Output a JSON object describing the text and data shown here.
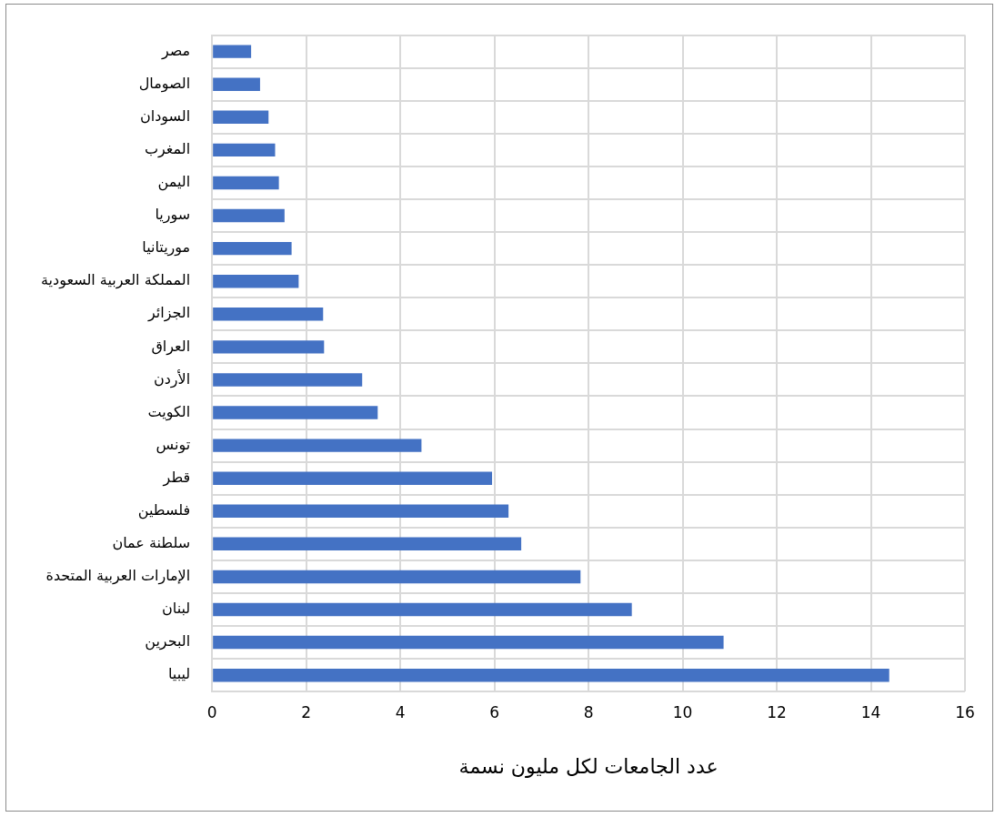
{
  "chart_data": {
    "type": "bar",
    "orientation": "horizontal",
    "xlabel": "عدد الجامعات لكل مليون نسمة",
    "categories": [
      "مصر",
      "الصومال",
      "السودان",
      "المغرب",
      "اليمن",
      "سوريا",
      "موريتانيا",
      "المملكة العربية السعودية",
      "الجزائر",
      "العراق",
      "الأردن",
      "الكويت",
      "تونس",
      "قطر",
      "فلسطين",
      "سلطنة عمان",
      "الإمارات العربية المتحدة",
      "لبنان",
      "البحرين",
      "ليبيا"
    ],
    "values": [
      0.83,
      1.02,
      1.2,
      1.34,
      1.42,
      1.54,
      1.69,
      1.84,
      2.36,
      2.38,
      3.19,
      3.52,
      4.45,
      5.95,
      6.3,
      6.57,
      7.83,
      8.92,
      10.87,
      14.39
    ],
    "color": "#4472c4",
    "xlim": [
      0,
      16
    ],
    "xticks": [
      0,
      2,
      4,
      6,
      8,
      10,
      12,
      14,
      16
    ],
    "grid": true,
    "legend": false
  }
}
